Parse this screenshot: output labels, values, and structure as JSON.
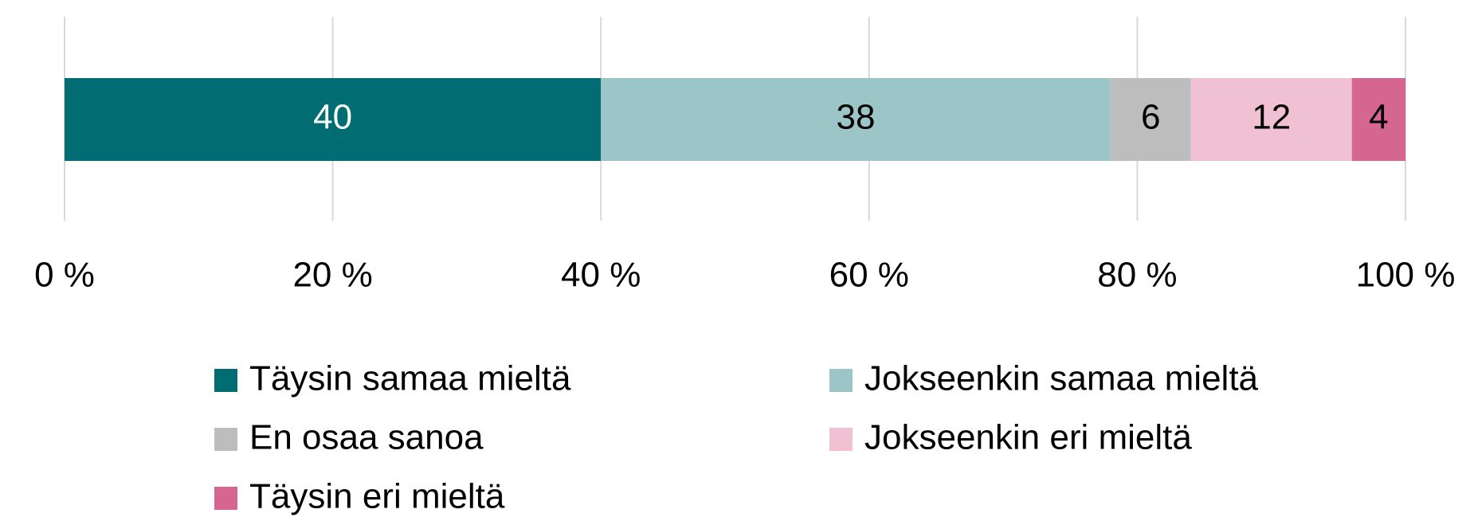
{
  "chart_data": {
    "type": "bar",
    "orientation": "horizontal",
    "stacked": true,
    "categories": [
      null
    ],
    "series": [
      {
        "name": "Täysin samaa mieltä",
        "color": "#026c73",
        "values": [
          40
        ]
      },
      {
        "name": "Jokseenkin samaa mieltä",
        "color": "#9bc5c6",
        "values": [
          38
        ]
      },
      {
        "name": "En osaa sanoa",
        "color": "#bdbdbd",
        "values": [
          6
        ]
      },
      {
        "name": "Jokseenkin eri mieltä",
        "color": "#efc1d3",
        "values": [
          12
        ]
      },
      {
        "name": "Täysin eri mieltä",
        "color": "#d5668f",
        "values": [
          4
        ]
      }
    ],
    "xlim": [
      0,
      100
    ],
    "xticks": [
      {
        "value": 0,
        "label": "0 %"
      },
      {
        "value": 20,
        "label": "20 %"
      },
      {
        "value": 40,
        "label": "40 %"
      },
      {
        "value": 60,
        "label": "60 %"
      },
      {
        "value": 80,
        "label": "80 %"
      },
      {
        "value": 100,
        "label": "100 %"
      }
    ],
    "grid": true,
    "legend": "bottom"
  }
}
